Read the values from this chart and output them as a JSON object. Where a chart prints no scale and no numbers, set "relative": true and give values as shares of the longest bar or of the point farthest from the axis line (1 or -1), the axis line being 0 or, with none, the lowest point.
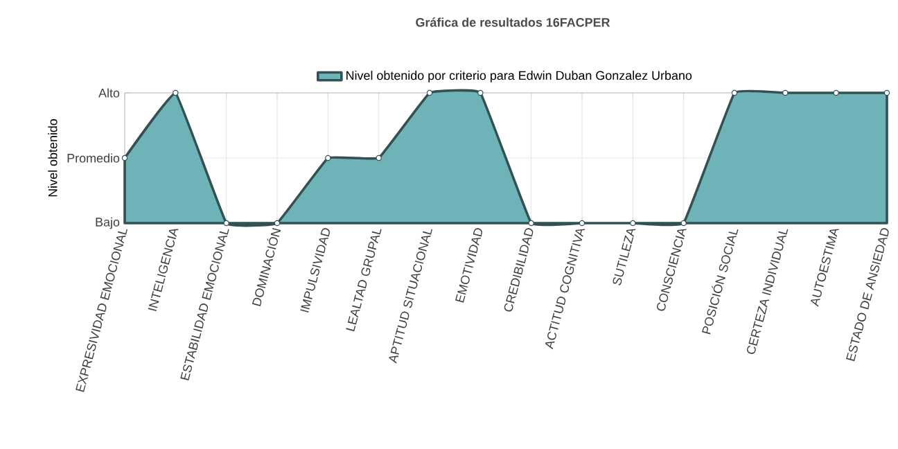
{
  "chart_data": {
    "type": "area",
    "title": "Gráfica de resultados 16FACPER",
    "ylabel": "Nivel obtenido",
    "categories": [
      "EXPRESIVIDAD EMOCIONAL",
      "INTELIGENCIA",
      "ESTABILIDAD EMOCIONAL",
      "DOMINACIÓN",
      "IMPULSIVIDAD",
      "LEALTAD GRUPAL",
      "APTITUD SITUACIONAL",
      "EMOTIVIDAD",
      "CREDIBILIDAD",
      "ACTITUD COGNITIVA",
      "SUTILEZA",
      "CONSCIENCIA",
      "POSICIÓN SOCIAL",
      "CERTEZA INDIVIDUAL",
      "AUTOESTIMA",
      "ESTADO DE ANSIEDAD"
    ],
    "series": [
      {
        "name": "Nivel obtenido por criterio para Edwin Duban Gonzalez Urbano",
        "color": "#6db3b7",
        "values": [
          0.5,
          1,
          0,
          0,
          0.5,
          0.5,
          1,
          1,
          0,
          0,
          0,
          0,
          1,
          1,
          1,
          1
        ]
      }
    ],
    "relative": true,
    "annotations": [
      "Bajo",
      "Promedio",
      "Alto"
    ],
    "grid": true,
    "legend": "top",
    "marker": "circle"
  }
}
